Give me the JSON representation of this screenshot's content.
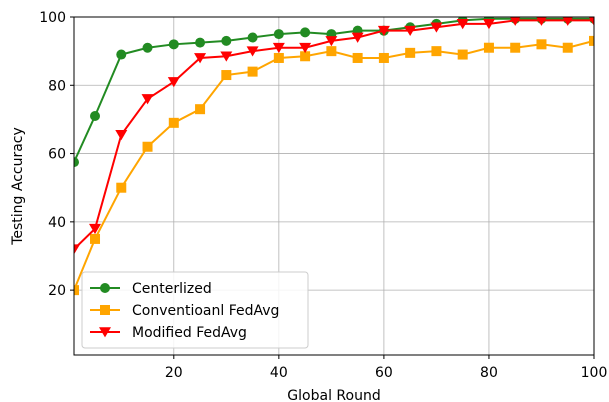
{
  "chart_data": {
    "type": "line",
    "title": "",
    "xlabel": "Global Round",
    "ylabel": "Testing Accuracy",
    "xlim": [
      1,
      100
    ],
    "ylim": [
      1,
      100
    ],
    "xticks": [
      20,
      40,
      60,
      80,
      100
    ],
    "yticks": [
      20,
      40,
      60,
      80,
      100
    ],
    "grid": true,
    "legend_position": "lower-left",
    "series": [
      {
        "name": "Centerlized",
        "color": "#228b22",
        "marker": "circle",
        "x": [
          1,
          5,
          10,
          15,
          20,
          25,
          30,
          35,
          40,
          45,
          50,
          55,
          60,
          65,
          70,
          75,
          80,
          85,
          90,
          95,
          100
        ],
        "y": [
          57.5,
          71,
          89,
          91,
          92,
          92.5,
          93,
          94,
          95,
          95.5,
          95,
          96,
          96,
          97,
          98,
          99,
          99.5,
          99.5,
          99.5,
          99.5,
          99.5
        ]
      },
      {
        "name": "Conventioanl FedAvg",
        "color": "#ffa500",
        "marker": "square",
        "x": [
          1,
          5,
          10,
          15,
          20,
          25,
          30,
          35,
          40,
          45,
          50,
          55,
          60,
          65,
          70,
          75,
          80,
          85,
          90,
          95,
          100
        ],
        "y": [
          20,
          35,
          50,
          62,
          69,
          73,
          83,
          84,
          88,
          88.5,
          90,
          88,
          88,
          89.5,
          90,
          89,
          91,
          91,
          92,
          91,
          93
        ]
      },
      {
        "name": "Modified FedAvg",
        "color": "#ff0000",
        "marker": "triangle-down",
        "x": [
          1,
          5,
          10,
          15,
          20,
          25,
          30,
          35,
          40,
          45,
          50,
          55,
          60,
          65,
          70,
          75,
          80,
          85,
          90,
          95,
          100
        ],
        "y": [
          32,
          38,
          65.5,
          76,
          81,
          88,
          88.5,
          90,
          91,
          91,
          93,
          94,
          96,
          96,
          97,
          98,
          98,
          99,
          99,
          99,
          99
        ]
      }
    ]
  }
}
